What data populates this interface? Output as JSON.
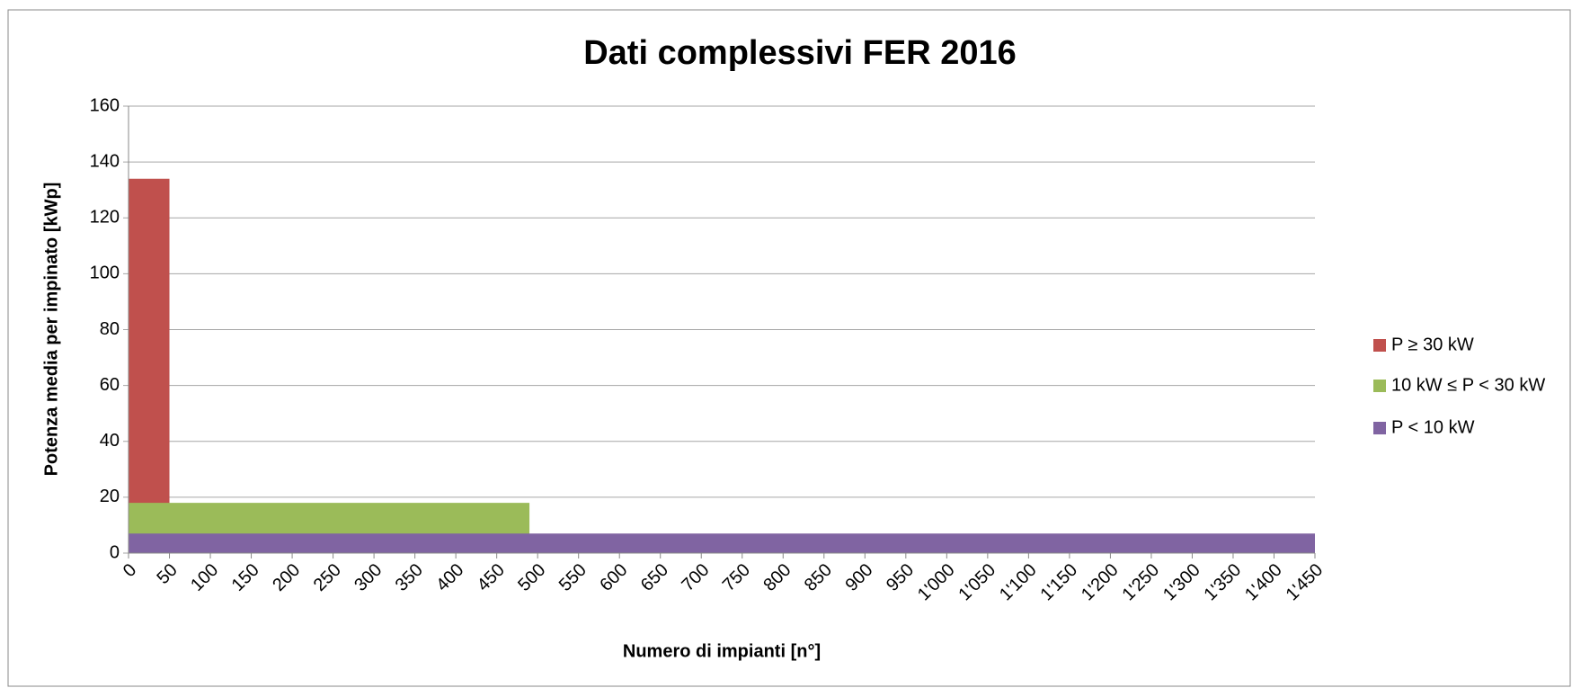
{
  "chart_data": {
    "type": "area",
    "title": "Dati complessivi FER 2016",
    "xlabel": "Numero di impianti [n°]",
    "ylabel": "Potenza media per impinato [kWp]",
    "series": [
      {
        "name": "P ≥ 30 kW",
        "color": "#c0504d",
        "x": [
          0,
          50
        ],
        "values": [
          134,
          134
        ]
      },
      {
        "name": "10 kW ≤ P < 30 kW",
        "color": "#9bbb59",
        "x": [
          0,
          490
        ],
        "values": [
          18,
          18
        ]
      },
      {
        "name": "P < 10 kW",
        "color": "#8064a2",
        "x": [
          0,
          1450
        ],
        "values": [
          7,
          7
        ]
      }
    ],
    "xlim": [
      0,
      1450
    ],
    "xticks": [
      0,
      50,
      100,
      150,
      200,
      250,
      300,
      350,
      400,
      450,
      500,
      550,
      600,
      650,
      700,
      750,
      800,
      850,
      900,
      950,
      {
        "value": 1000,
        "label": "1'000"
      },
      {
        "value": 1050,
        "label": "1'050"
      },
      {
        "value": 1100,
        "label": "1'100"
      },
      {
        "value": 1150,
        "label": "1'150"
      },
      {
        "value": 1200,
        "label": "1'200"
      },
      {
        "value": 1250,
        "label": "1'250"
      },
      {
        "value": 1300,
        "label": "1'300"
      },
      {
        "value": 1350,
        "label": "1'350"
      },
      {
        "value": 1400,
        "label": "1'400"
      },
      {
        "value": 1450,
        "label": "1'450"
      }
    ],
    "ylim": [
      0,
      160
    ],
    "yticks": [
      0,
      20,
      40,
      60,
      80,
      100,
      120,
      140,
      160
    ],
    "grid": true,
    "legend": "right"
  }
}
